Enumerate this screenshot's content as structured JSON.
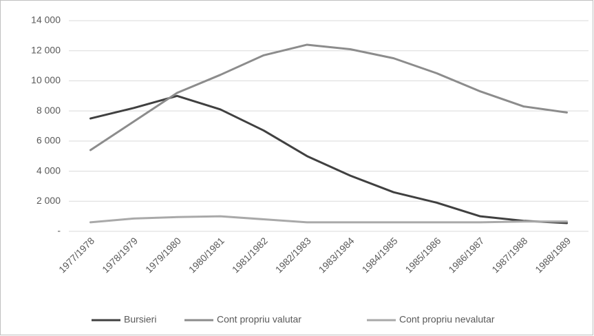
{
  "chart_data": {
    "type": "line",
    "categories": [
      "1977/1978",
      "1978/1979",
      "1979/1980",
      "1980/1981",
      "1981/1982",
      "1982/1983",
      "1983/1984",
      "1984/1985",
      "1985/1986",
      "1986/1987",
      "1987/1988",
      "1988/1989"
    ],
    "series": [
      {
        "name": "Bursieri",
        "color": "#404040",
        "values": [
          7500,
          8200,
          9000,
          8100,
          6700,
          5000,
          3700,
          2600,
          1900,
          1000,
          700,
          550
        ]
      },
      {
        "name": "Cont propriu valutar",
        "color": "#8c8c8c",
        "values": [
          5400,
          7300,
          9200,
          10400,
          11700,
          12400,
          12100,
          11500,
          10500,
          9300,
          8300,
          7900
        ]
      },
      {
        "name": "Cont propriu nevalutar",
        "color": "#a9a9a9",
        "values": [
          600,
          850,
          950,
          1000,
          800,
          600,
          600,
          600,
          600,
          600,
          650,
          650
        ]
      }
    ],
    "ylim": [
      0,
      14000
    ],
    "yticks": [
      {
        "value": 0,
        "label": "-"
      },
      {
        "value": 2000,
        "label": "2 000"
      },
      {
        "value": 4000,
        "label": "4 000"
      },
      {
        "value": 6000,
        "label": "6 000"
      },
      {
        "value": 8000,
        "label": "8 000"
      },
      {
        "value": 10000,
        "label": "10 000"
      },
      {
        "value": 12000,
        "label": "12 000"
      },
      {
        "value": 14000,
        "label": "14 000"
      }
    ],
    "grid": true,
    "legend": "bottom"
  }
}
